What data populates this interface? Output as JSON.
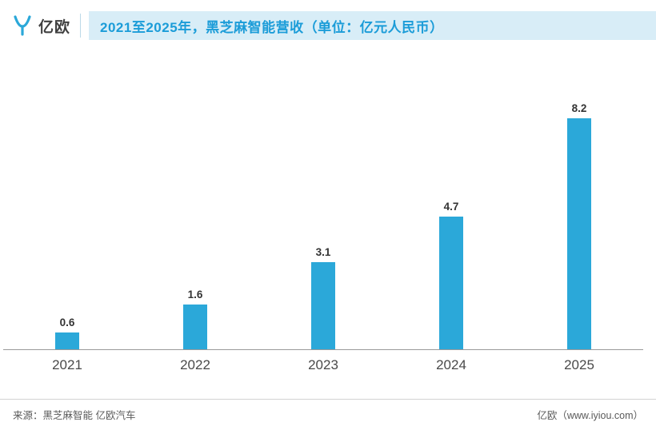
{
  "header": {
    "logo_text": "亿欧",
    "title": "2021至2025年，黑芝麻智能营收（单位：亿元人民币）"
  },
  "chart_data": {
    "type": "bar",
    "title": "2021至2025年，黑芝麻智能营收（单位：亿元人民币）",
    "categories": [
      "2021",
      "2022",
      "2023",
      "2024",
      "2025"
    ],
    "values": [
      0.6,
      1.6,
      3.1,
      4.7,
      8.2
    ],
    "value_labels": [
      "0.6",
      "1.6",
      "3.1",
      "4.7",
      "8.2"
    ],
    "xlabel": "",
    "ylabel": "",
    "ylim": [
      0,
      9
    ],
    "grid": false,
    "legend": "none",
    "bar_color": "#2BA8D9"
  },
  "footer": {
    "source": "来源：黑芝麻智能 亿欧汽车",
    "site": "亿欧（www.iyiou.com）"
  },
  "colors": {
    "accent": "#2BA8D9",
    "title_bg": "#D8EDF7",
    "title_text": "#1B9CD8",
    "axis": "#9A9A9A"
  }
}
